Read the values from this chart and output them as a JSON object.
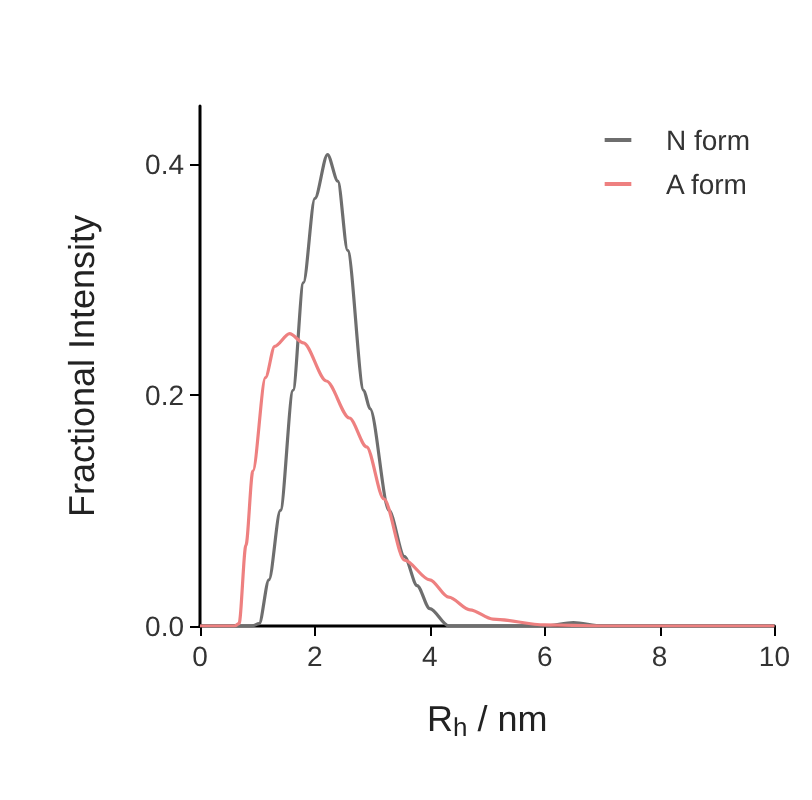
{
  "chart_data": {
    "type": "line",
    "xlabel": "R$_{h}$ / nm",
    "ylabel": "Fractional Intensity",
    "xlim": [
      0,
      10
    ],
    "xticks": [
      0,
      2,
      4,
      6,
      8,
      10
    ],
    "ylim": [
      0,
      0.45
    ],
    "yticks": [
      {
        "value": 0,
        "label": "0.0"
      },
      0.2,
      0.4
    ],
    "grid": false,
    "legend": "top right",
    "marker": "none",
    "line_style": "solid",
    "series": [
      {
        "name": "N form",
        "color": "#6e6e6e",
        "x": [
          0,
          0.9,
          1.03,
          1.2,
          1.4,
          1.62,
          1.8,
          2.0,
          2.22,
          2.4,
          2.57,
          2.85,
          2.96,
          3.29,
          3.56,
          3.78,
          4.0,
          4.33,
          5,
          6,
          6.5,
          7,
          8,
          10
        ],
        "values": [
          0,
          0,
          0.002,
          0.04,
          0.1,
          0.204,
          0.297,
          0.37,
          0.408,
          0.385,
          0.325,
          0.204,
          0.188,
          0.1,
          0.06,
          0.035,
          0.015,
          0,
          0,
          0,
          0.003,
          0,
          0,
          0
        ]
      },
      {
        "name": "A form",
        "color": "#ee8080",
        "x": [
          0,
          0.6,
          0.68,
          0.8,
          0.92,
          1.14,
          1.3,
          1.56,
          1.8,
          2.2,
          2.6,
          2.9,
          3.2,
          3.56,
          4.0,
          4.33,
          4.7,
          5.1,
          6,
          7,
          10
        ],
        "values": [
          0,
          0,
          0.002,
          0.07,
          0.134,
          0.215,
          0.242,
          0.253,
          0.245,
          0.212,
          0.18,
          0.155,
          0.11,
          0.057,
          0.04,
          0.025,
          0.014,
          0.006,
          0.001,
          0,
          0
        ]
      }
    ]
  }
}
